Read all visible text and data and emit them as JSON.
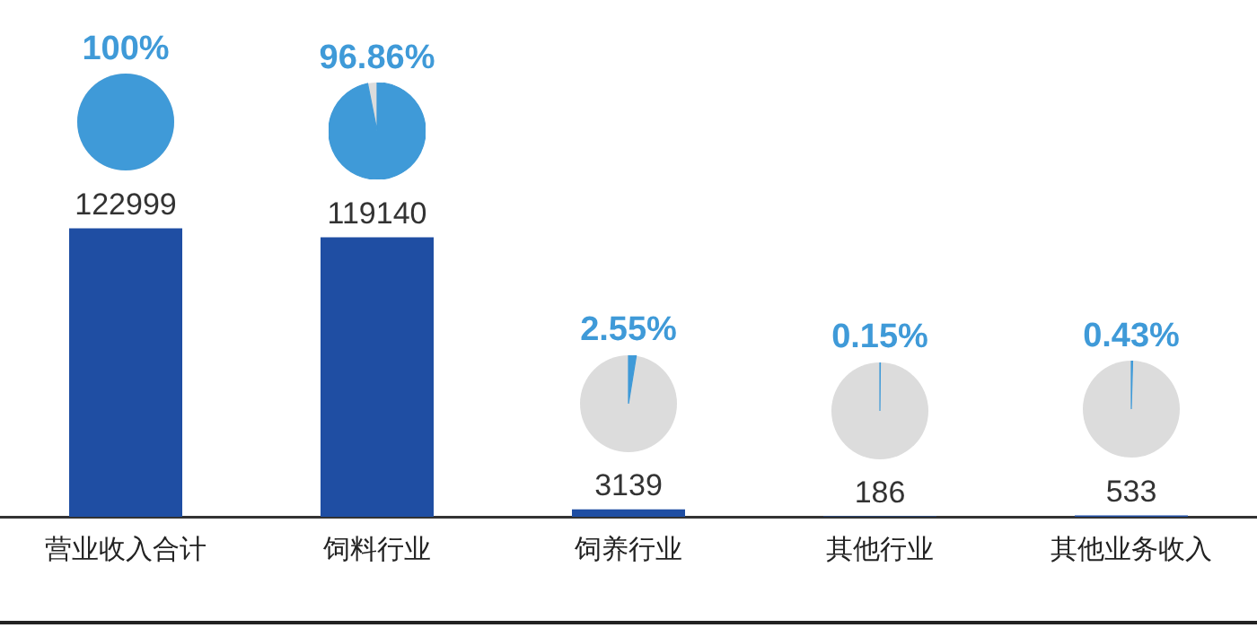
{
  "chart_data": {
    "type": "bar",
    "categories": [
      "营业收入合计",
      "饲料行业",
      "饲养行业",
      "其他行业",
      "其他业务收入"
    ],
    "values": [
      122999,
      119140,
      3139,
      186,
      533
    ],
    "color": "#1f4ea3",
    "tick_labels": "x",
    "data_labels": true,
    "grid": false,
    "legend": false,
    "annotations": [
      "100%",
      "96.86%",
      "2.55%",
      "0.15%",
      "0.43%"
    ]
  }
}
